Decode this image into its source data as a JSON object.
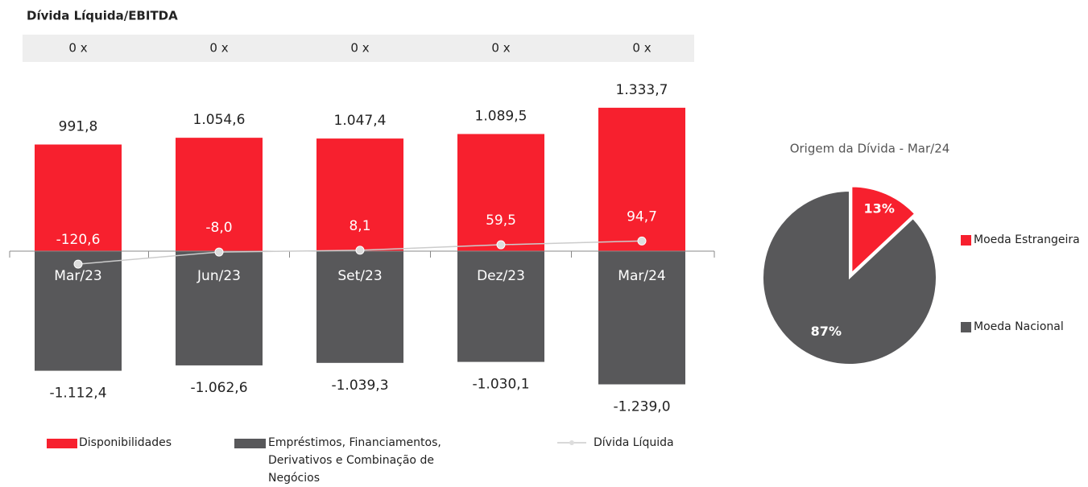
{
  "chart_data": [
    {
      "type": "bar",
      "title": "Dívida Líquida/EBITDA",
      "ratios": [
        "0 x",
        "0 x",
        "0 x",
        "0 x",
        "0 x"
      ],
      "categories": [
        "Mar/23",
        "Jun/23",
        "Set/23",
        "Dez/23",
        "Mar/24"
      ],
      "ylim": [
        -1400,
        1400
      ],
      "legend": "bottom",
      "series": [
        {
          "name": "Disponibilidades",
          "color": "#f7202e",
          "values": [
            991.8,
            1054.6,
            1047.4,
            1089.5,
            1333.7
          ],
          "value_labels": [
            "991,8",
            "1.054,6",
            "1.047,4",
            "1.089,5",
            "1.333,7"
          ]
        },
        {
          "name": "Empréstimos, Financiamentos, Derivativos e Combinação de Negócios",
          "color": "#58585a",
          "values": [
            -1112.4,
            -1062.6,
            -1039.3,
            -1030.1,
            -1239.0
          ],
          "value_labels": [
            "-1.112,4",
            "-1.062,6",
            "-1.039,3",
            "-1.030,1",
            "-1.239,0"
          ]
        },
        {
          "name": "Dívida Líquida",
          "type": "line",
          "color": "#cccccc",
          "values": [
            -120.6,
            -8.0,
            8.1,
            59.5,
            94.7
          ],
          "value_labels": [
            "-120,6",
            "-8,0",
            "8,1",
            "59,5",
            "94,7"
          ]
        }
      ]
    },
    {
      "type": "pie",
      "title": "Origem da Dívida - Mar/24",
      "legend": "right",
      "categories": [
        "Moeda Estrangeira",
        "Moeda Nacional"
      ],
      "values": [
        13,
        87
      ],
      "value_labels": [
        "13%",
        "87%"
      ],
      "colors": [
        "#f7202e",
        "#58585a"
      ]
    }
  ]
}
